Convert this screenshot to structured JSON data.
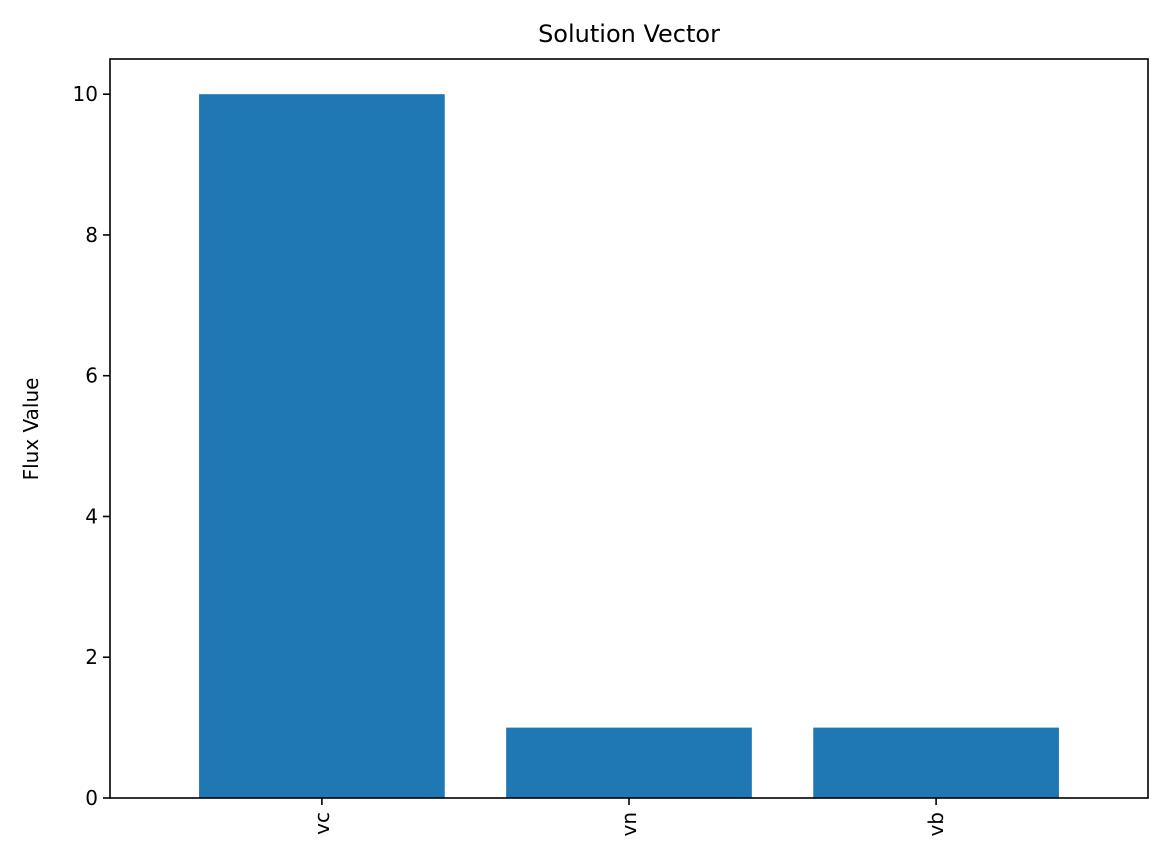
{
  "chart_data": {
    "type": "bar",
    "title": "Solution Vector",
    "xlabel": "",
    "ylabel": "Flux Value",
    "categories": [
      "vc",
      "vn",
      "vb"
    ],
    "values": [
      10,
      1,
      1
    ],
    "ylim": [
      0,
      10.5
    ],
    "yticks": [
      0,
      2,
      4,
      6,
      8,
      10
    ],
    "grid": false,
    "legend": "none",
    "bar_color": "#1f77b4"
  }
}
